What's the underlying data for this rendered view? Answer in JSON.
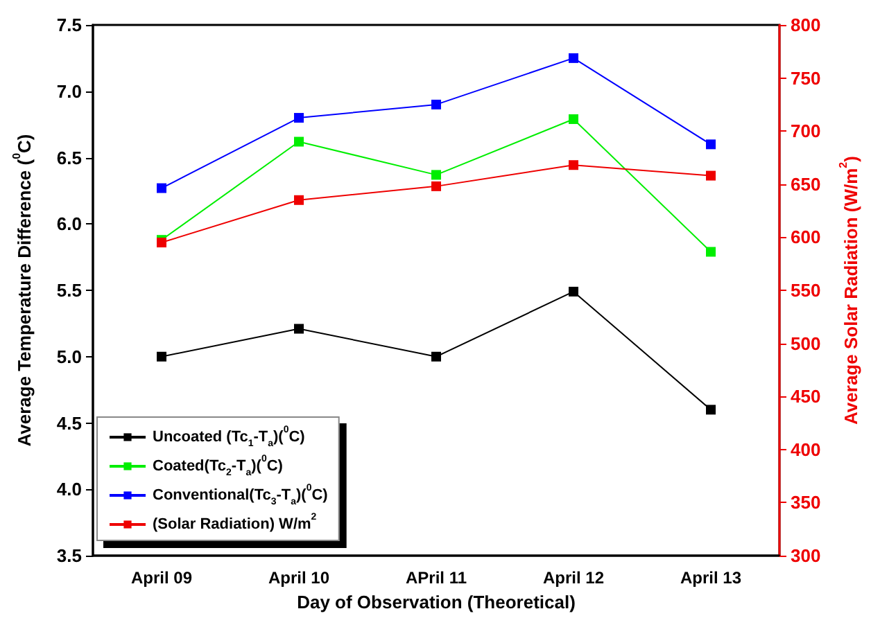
{
  "chart_data": {
    "type": "line",
    "xlabel": "Day of Observation (Theoretical)",
    "ylabel": "Average Temperature Difference ($^{0}$C)",
    "y2label": "Average Solar Radiation (W/m$^{2}$)",
    "categories": [
      "April 09",
      "April 10",
      "APril 11",
      "April 12",
      "April 13"
    ],
    "series": [
      {
        "name": "Uncoated (Tc$_{1}$-T$_{a}$)($^{0}$C)",
        "color": "#000000",
        "values": [
          5.0,
          5.21,
          5.0,
          5.49,
          4.6
        ]
      },
      {
        "name": "Coated(Tc$_{2}$-T$_{a}$)($^{0}$C)",
        "color": "#00ee00",
        "values": [
          5.88,
          6.62,
          6.37,
          6.79,
          5.79
        ]
      },
      {
        "name": "Conventional(Tc$_{3}$-T$_{a}$)($^{0}$C)",
        "color": "#0000ff",
        "values": [
          6.27,
          6.8,
          6.9,
          7.25,
          6.6
        ]
      },
      {
        "name": "(Solar Radiation) W/m$^{2}$",
        "color": "#ee0000",
        "axis": "y2",
        "values": [
          595,
          635,
          648,
          668,
          658
        ]
      }
    ],
    "ylim": [
      3.5,
      7.5
    ],
    "yticks": [
      3.5,
      {
        "value": 4,
        "label": "4.0"
      },
      4.5,
      {
        "value": 5,
        "label": "5.0"
      },
      5.5,
      {
        "value": 6,
        "label": "6.0"
      },
      6.5,
      {
        "value": 7,
        "label": "7.0"
      },
      7.5
    ],
    "y2lim": [
      300,
      800
    ],
    "y2ticks": [
      300,
      350,
      400,
      450,
      500,
      550,
      600,
      650,
      700,
      750,
      800
    ],
    "grid": false,
    "legend": "bottom left",
    "marker": "square",
    "line_style": "solid"
  }
}
